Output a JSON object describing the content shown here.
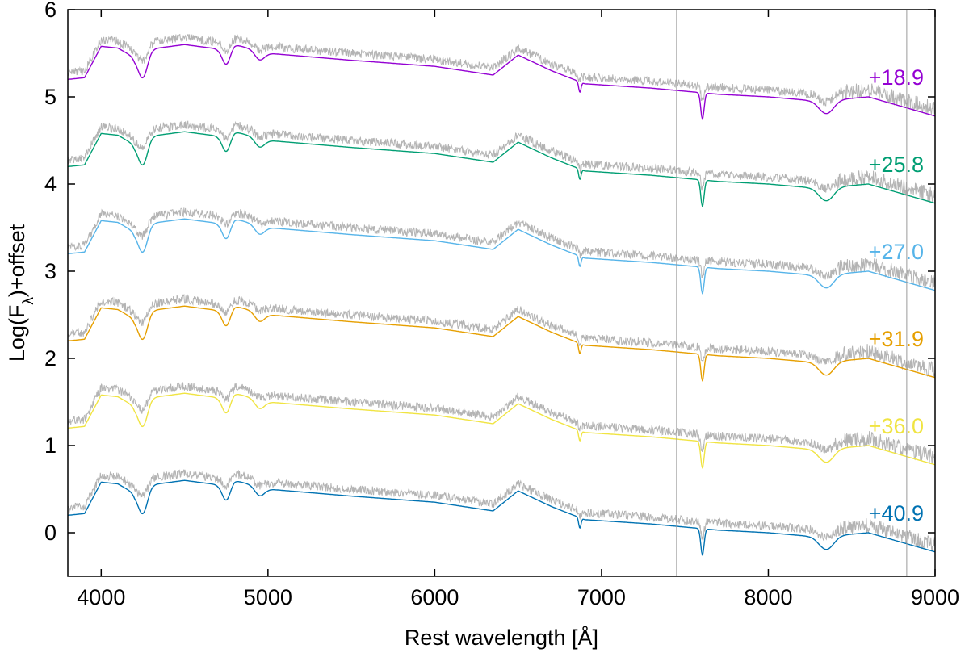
{
  "chart_data": {
    "type": "line",
    "xlabel": "Rest wavelength [Å]",
    "ylabel": {
      "prefix": "Log(F",
      "sub": "λ",
      "suffix": ")+offset"
    },
    "xlim": [
      3800,
      9000
    ],
    "ylim": [
      -0.5,
      6
    ],
    "xticks": [
      4000,
      5000,
      6000,
      7000,
      8000,
      9000
    ],
    "yticks": [
      0,
      1,
      2,
      3,
      4,
      5,
      6
    ],
    "grid": false,
    "legend": "none",
    "vertical_lines": [
      7450,
      8830
    ],
    "observed_color": "#b4b4b4",
    "series": [
      {
        "name": "+18.9",
        "color": "#9400d3",
        "offset": 5.0
      },
      {
        "name": "+25.8",
        "color": "#009e73",
        "offset": 4.0
      },
      {
        "name": "+27.0",
        "color": "#56b4e9",
        "offset": 3.0
      },
      {
        "name": "+31.9",
        "color": "#e69f00",
        "offset": 2.0
      },
      {
        "name": "+36.0",
        "color": "#f0e442",
        "offset": 1.0
      },
      {
        "name": "+40.9",
        "color": "#0072b2",
        "offset": 0.0
      }
    ],
    "base_profile": [
      [
        3800,
        0.2
      ],
      [
        3900,
        0.22
      ],
      [
        4000,
        0.58
      ],
      [
        4100,
        0.56
      ],
      [
        4200,
        0.45
      ],
      [
        4300,
        0.55
      ],
      [
        4500,
        0.6
      ],
      [
        4700,
        0.55
      ],
      [
        4800,
        0.6
      ],
      [
        5000,
        0.5
      ],
      [
        5500,
        0.42
      ],
      [
        6000,
        0.35
      ],
      [
        6350,
        0.25
      ],
      [
        6500,
        0.48
      ],
      [
        6700,
        0.3
      ],
      [
        6900,
        0.15
      ],
      [
        7300,
        0.1
      ],
      [
        7700,
        0.03
      ],
      [
        8000,
        0.0
      ],
      [
        8300,
        -0.05
      ],
      [
        8600,
        0.0
      ],
      [
        9000,
        -0.22
      ]
    ],
    "features": [
      {
        "c": 4250,
        "w": 40,
        "d": 0.28
      },
      {
        "c": 4750,
        "w": 35,
        "d": 0.2
      },
      {
        "c": 4950,
        "w": 40,
        "d": 0.1
      },
      {
        "c": 6870,
        "w": 10,
        "d": 0.12
      },
      {
        "c": 7605,
        "w": 14,
        "d": 0.3
      },
      {
        "c": 8350,
        "w": 60,
        "d": 0.15
      }
    ]
  }
}
